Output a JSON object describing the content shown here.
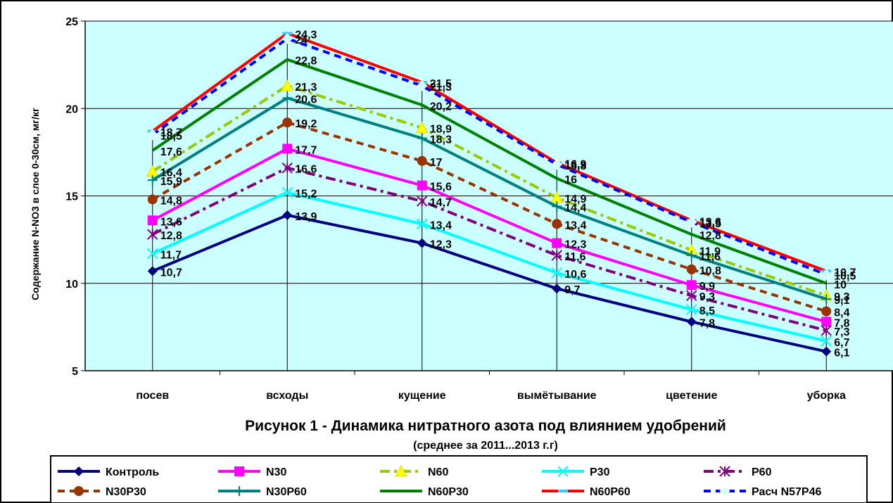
{
  "chart_data": {
    "type": "line",
    "title": "Рисунок 1 - Динамика нитратного азота под влиянием удобрений",
    "subtitle": "(среднее за 2011...2013 г.г)",
    "ylabel": "Содержание N-NO3 в слое 0-30см, мг/кг",
    "xlabel": "",
    "categories": [
      "посев",
      "всходы",
      "кущение",
      "вымётывание",
      "цветение",
      "уборка"
    ],
    "ylim": [
      5,
      25
    ],
    "yticks": [
      5,
      10,
      15,
      20,
      25
    ],
    "grid": "horizontal major + vertical drop lines",
    "plot_background": "#ccffff",
    "legend_position": "bottom",
    "series": [
      {
        "name": "Контроль",
        "values": [
          10.7,
          13.9,
          12.3,
          9.7,
          7.8,
          6.1
        ],
        "labels": [
          "10,7",
          "13,9",
          "12,3",
          "9,7",
          "7,8",
          "6,1"
        ],
        "color": "#000080",
        "dash": "solid",
        "marker": "diamond"
      },
      {
        "name": "N30",
        "values": [
          13.6,
          17.7,
          15.6,
          12.3,
          9.9,
          7.8
        ],
        "labels": [
          "13,6",
          "17,7",
          "15,6",
          "12,3",
          "9,9",
          "7,8"
        ],
        "color": "#ff00ff",
        "dash": "solid",
        "marker": "square"
      },
      {
        "name": "N60",
        "values": [
          16.4,
          21.3,
          18.9,
          14.9,
          11.9,
          9.3
        ],
        "labels": [
          "16,4",
          "21,3",
          "18,9",
          "14,9",
          "11,9",
          "9,3"
        ],
        "color": "#99cc00",
        "dash": "dashdot",
        "marker": "triangle"
      },
      {
        "name": "P30",
        "values": [
          11.7,
          15.2,
          13.4,
          10.6,
          8.5,
          6.7
        ],
        "labels": [
          "11,7",
          "15,2",
          "13,4",
          "10,6",
          "8,5",
          "6,7"
        ],
        "color": "#00ffff",
        "dash": "solid",
        "marker": "x"
      },
      {
        "name": "P60",
        "values": [
          12.8,
          16.6,
          14.7,
          11.6,
          9.3,
          7.3
        ],
        "labels": [
          "12,8",
          "16,6",
          "14,7",
          "11,6",
          "9,3",
          "7,3"
        ],
        "color": "#800080",
        "dash": "dashdot",
        "marker": "star"
      },
      {
        "name": "N30P30",
        "values": [
          14.8,
          19.2,
          17,
          13.4,
          10.8,
          8.4
        ],
        "labels": [
          "14,8",
          "19,2",
          "17",
          "13,4",
          "10,8",
          "8,4"
        ],
        "color": "#993300",
        "dash": "dash",
        "marker": "circle"
      },
      {
        "name": "N30P60",
        "values": [
          15.9,
          20.6,
          18.3,
          14.4,
          11.6,
          9.1
        ],
        "labels": [
          "15,9",
          "20,6",
          "18,3",
          "14,4",
          "11,6",
          "9,1"
        ],
        "color": "#008080",
        "dash": "solid",
        "marker": "plus"
      },
      {
        "name": "N60P30",
        "values": [
          17.6,
          22.8,
          20.2,
          16,
          12.8,
          10
        ],
        "labels": [
          "17,6",
          "22,8",
          "20,2",
          "16",
          "12,8",
          "10"
        ],
        "color": "#008000",
        "dash": "solid",
        "marker": "none"
      },
      {
        "name": "N60P60",
        "values": [
          18.7,
          24.3,
          21.5,
          16.9,
          13.6,
          10.7
        ],
        "labels": [
          "18,7",
          "24,3",
          "21,5",
          "16,9",
          "13,6",
          "10,7"
        ],
        "color": "#ff0000",
        "dash": "solid",
        "marker": "dash"
      },
      {
        "name": "Расч N57P46",
        "values": [
          18.5,
          24,
          21.3,
          16.8,
          13.5,
          10.5
        ],
        "labels": [
          "18,5",
          "24",
          "21,3",
          "16,8",
          "13,5",
          "10,5"
        ],
        "color": "#0000ff",
        "dash": "dash",
        "marker": "diamond-light"
      }
    ]
  }
}
